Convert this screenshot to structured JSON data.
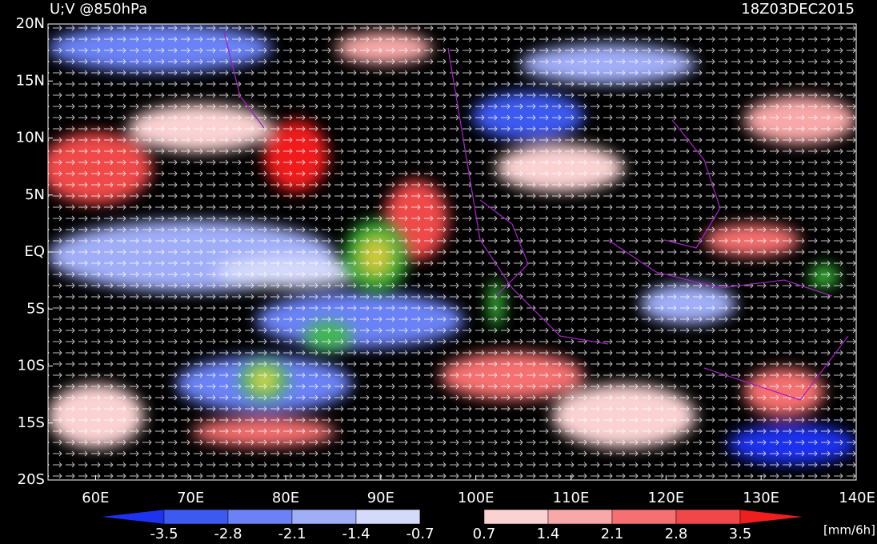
{
  "header": {
    "title": "U;V @850hPa",
    "time": "18Z03DEC2015"
  },
  "map": {
    "lat_labels": [
      "20N",
      "15N",
      "10N",
      "5N",
      "EQ",
      "5S",
      "10S",
      "15S",
      "20S"
    ],
    "lon_labels": [
      "60E",
      "70E",
      "80E",
      "90E",
      "100E",
      "110E",
      "120E",
      "130E",
      "140E"
    ]
  },
  "colorbar": {
    "colors": [
      "#1e32f0",
      "#3c5af0",
      "#6a82f5",
      "#a0aef8",
      "#d4dafa",
      "#000000",
      "#fad2d2",
      "#f8a8a8",
      "#f57070",
      "#f04848",
      "#f01e1e"
    ],
    "labels": [
      "-3.5",
      "-2.8",
      "-2.1",
      "-1.4",
      "-0.7",
      "0.7",
      "1.4",
      "2.1",
      "2.8",
      "3.5"
    ],
    "unit": "[mm/6h]"
  }
}
